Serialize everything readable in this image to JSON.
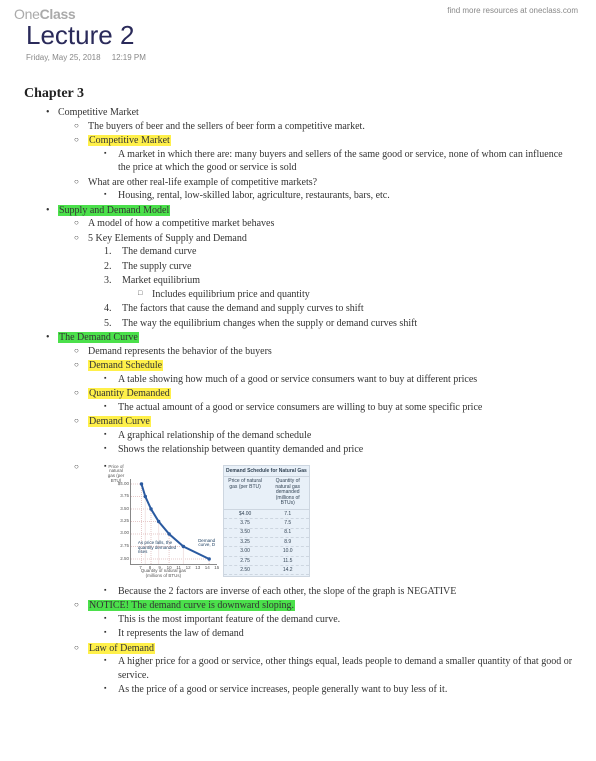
{
  "watermark": {
    "one": "One",
    "class": "Class"
  },
  "topLink": "find more resources at oneclass.com",
  "title": "Lecture 2",
  "date": "Friday, May 25, 2018",
  "time": "12:19 PM",
  "chapter": "Chapter 3",
  "colors": {
    "highlightYellow": "#fff04a",
    "highlightGreen": "#4be04b",
    "titleColor": "#2a2a5a"
  },
  "s1": {
    "heading": "Competitive Market",
    "line1": "The buyers of beer and the sellers of beer form a competitive market.",
    "term": "Competitive Market",
    "def": "A market in which there are: many buyers and sellers of the same good or service, none of whom can influence the price at which the good or service is sold",
    "q": "What are other real-life example of competitive markets?",
    "ex": "Housing, rental, low-skilled labor, agriculture, restaurants, bars, etc."
  },
  "s2": {
    "heading": "Supply and Demand Model",
    "line1": "A model of how a competitive market behaves",
    "line2": "5 Key Elements of Supply and Demand",
    "k1": "The demand curve",
    "k2": "The supply curve",
    "k3": "Market equilibrium",
    "k3a": "Includes equilibrium price and quantity",
    "k4": "The factors that cause the demand and supply curves to shift",
    "k5": "The way the equilibrium changes when the supply or demand curves shift"
  },
  "s3": {
    "heading": "The Demand Curve",
    "line1": "Demand represents the behavior of the buyers",
    "t1": "Demand Schedule",
    "d1": "A table showing how much of a good or service consumers want to buy at different prices",
    "t2": "Quantity Demanded",
    "d2": "The actual amount of a good or service consumers are willing to buy at some specific price",
    "t3": "Demand Curve",
    "d3a": "A graphical relationship of the demand schedule",
    "d3b": "Shows the relationship between quantity demanded and price",
    "afterChart": "Because the 2 factors are inverse of each other, the slope of the graph is NEGATIVE",
    "notice": "NOTICE! The demand curve is downward sloping.",
    "n1": "This is the most important feature of the demand curve.",
    "n2": "It represents the law of demand",
    "t4": "Law of Demand",
    "d4a": "A higher price for a good or service, other things equal, leads people to demand a smaller quantity of that good or service.",
    "d4b": "As the price of a good or service increases, people generally want to buy less of it."
  },
  "chart": {
    "type": "line",
    "yLabel": "Price of natural gas (per BTU)",
    "xLabel": "Quantity of natural gas (millions of BTUs)",
    "tableTitle": "Demand Schedule for Natural Gas",
    "col1Header": "Price of natural gas (per BTU)",
    "col2Header": "Quantity of natural gas demanded (millions of BTUs)",
    "rows": [
      {
        "price": "$4.00",
        "qty": "7.1"
      },
      {
        "price": "3.75",
        "qty": "7.5"
      },
      {
        "price": "3.50",
        "qty": "8.1"
      },
      {
        "price": "3.25",
        "qty": "8.9"
      },
      {
        "price": "3.00",
        "qty": "10.0"
      },
      {
        "price": "2.75",
        "qty": "11.5"
      },
      {
        "price": "2.50",
        "qty": "14.2"
      }
    ],
    "yticks": [
      "$4.00",
      "3.75",
      "3.50",
      "3.25",
      "3.00",
      "2.75",
      "2.50"
    ],
    "xticks": [
      "0",
      "7",
      "8",
      "9",
      "10",
      "11",
      "12",
      "13",
      "14",
      "15"
    ],
    "curveLabel": "Demand curve, D",
    "arrowNote": "As price falls, the quantity demanded rises",
    "lineColor": "#2a5aa0",
    "pointColor": "#2a5aa0",
    "gridColor": "#e6c9c9",
    "background": "#ffffff",
    "xlim": [
      6,
      15
    ],
    "ylim": [
      2.4,
      4.1
    ],
    "lineWidth": 1.5,
    "markerSize": 2
  }
}
